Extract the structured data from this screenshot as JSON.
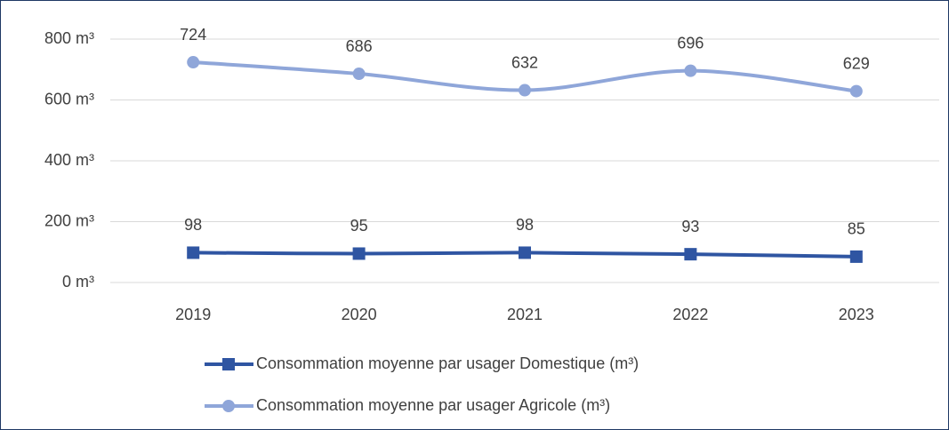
{
  "chart_data": {
    "type": "line",
    "categories": [
      "2019",
      "2020",
      "2021",
      "2022",
      "2023"
    ],
    "series": [
      {
        "name": "Consommation moyenne par usager Domestique (m³)",
        "color": "#2f55a2",
        "marker": "square",
        "values": [
          98,
          95,
          98,
          93,
          85
        ]
      },
      {
        "name": "Consommation moyenne par usager Agricole (m³)",
        "color": "#8fa6d9",
        "marker": "circle",
        "values": [
          724,
          686,
          632,
          696,
          629
        ]
      }
    ],
    "ylim": [
      0,
      800
    ],
    "yticks": [
      {
        "value": 0,
        "label": "0 m³"
      },
      {
        "value": 200,
        "label": "200 m³"
      },
      {
        "value": 400,
        "label": "400 m³"
      },
      {
        "value": 600,
        "label": "600 m³"
      },
      {
        "value": 800,
        "label": "800 m³"
      }
    ],
    "grid": true,
    "smooth": true,
    "legend": "bottom"
  }
}
